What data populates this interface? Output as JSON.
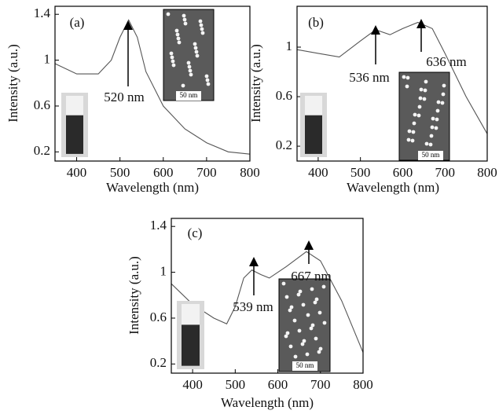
{
  "chart_data": [
    {
      "type": "line",
      "label": "(a)",
      "x_label": "Wavelength (nm)",
      "y_label": "Intensity (a.u.)",
      "x": [
        350,
        400,
        450,
        480,
        500,
        520,
        540,
        560,
        600,
        650,
        700,
        750,
        800
      ],
      "values": [
        0.97,
        0.88,
        0.88,
        1.0,
        1.2,
        1.35,
        1.2,
        0.9,
        0.6,
        0.4,
        0.28,
        0.2,
        0.18
      ],
      "color": "#555555",
      "xlim": [
        350,
        800
      ],
      "ylim": [
        0.12,
        1.47
      ],
      "xticks": [
        400,
        500,
        600,
        700,
        800
      ],
      "yticks": [
        0.2,
        0.6,
        1.0,
        1.4
      ],
      "annotations": [
        "520 nm"
      ],
      "scale_bar": "50 nm"
    },
    {
      "type": "line",
      "label": "(b)",
      "x_label": "Wavelength (nm)",
      "y_label": "Intensity (a.u.)",
      "x": [
        350,
        400,
        450,
        500,
        536,
        570,
        600,
        636,
        670,
        700,
        750,
        800
      ],
      "values": [
        0.98,
        0.95,
        0.92,
        1.05,
        1.14,
        1.1,
        1.15,
        1.2,
        1.15,
        0.95,
        0.6,
        0.3
      ],
      "color": "#555555",
      "xlim": [
        350,
        800
      ],
      "ylim": [
        0.08,
        1.33
      ],
      "xticks": [
        400,
        500,
        600,
        700,
        800
      ],
      "yticks": [
        0.2,
        0.6,
        1.0
      ],
      "annotations": [
        "536 nm",
        "636 nm"
      ],
      "scale_bar": "50 nm"
    },
    {
      "type": "line",
      "label": "(c)",
      "x_label": "Wavelength (nm)",
      "y_label": "Intensity (a.u.)",
      "x": [
        350,
        400,
        450,
        480,
        500,
        520,
        539,
        560,
        580,
        620,
        667,
        700,
        750,
        800
      ],
      "values": [
        0.9,
        0.72,
        0.6,
        0.55,
        0.7,
        0.95,
        1.02,
        0.98,
        0.95,
        1.05,
        1.18,
        1.1,
        0.75,
        0.3
      ],
      "color": "#555555",
      "xlim": [
        350,
        800
      ],
      "ylim": [
        0.12,
        1.47
      ],
      "xticks": [
        400,
        500,
        600,
        700,
        800
      ],
      "yticks": [
        0.2,
        0.6,
        1.0,
        1.4
      ],
      "annotations": [
        "539 nm",
        "667 nm"
      ],
      "scale_bar": "50 nm"
    }
  ]
}
